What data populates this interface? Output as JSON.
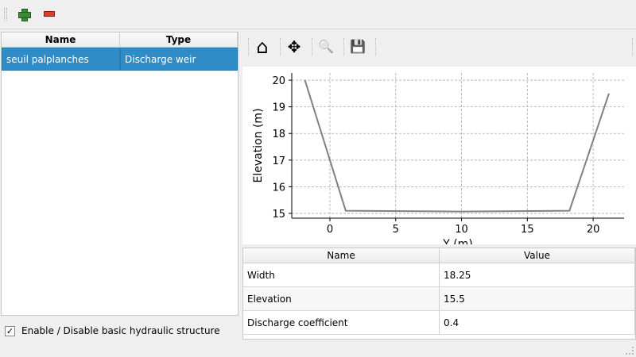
{
  "toolbar": {
    "add_icon": "plus-icon",
    "remove_icon": "minus-icon"
  },
  "structures": {
    "columns": [
      "Name",
      "Type"
    ],
    "rows": [
      {
        "name": "seuil palplanches",
        "type": "Discharge weir"
      }
    ]
  },
  "enable_checkbox": {
    "label": "Enable / Disable basic hydraulic structure",
    "checked": true,
    "mark": "✓"
  },
  "plot_toolbar": {
    "icons": [
      "home-icon",
      "move-icon",
      "zoom-icon",
      "save-icon"
    ],
    "glyphs": [
      "⌂",
      "✥",
      "🔍",
      "💾"
    ]
  },
  "parameters": {
    "columns": [
      "Name",
      "Value"
    ],
    "rows": [
      {
        "name": "Width",
        "value": "18.25"
      },
      {
        "name": "Elevation",
        "value": "15.5"
      },
      {
        "name": "Discharge coefficient",
        "value": "0.4"
      }
    ]
  },
  "chart_data": {
    "type": "line",
    "x": [
      -1.9,
      1.2,
      10,
      18.2,
      21.2
    ],
    "y": [
      20,
      15.1,
      15.07,
      15.1,
      19.5
    ],
    "xlabel": "Y (m)",
    "ylabel": "Elevation (m)",
    "xlim": [
      -2.9,
      22.35
    ],
    "ylim": [
      14.82,
      20.27
    ],
    "xticks": [
      0,
      5,
      10,
      15,
      20
    ],
    "yticks": [
      15,
      16,
      17,
      18,
      19,
      20
    ],
    "grid": true,
    "line_color": "#808080"
  }
}
